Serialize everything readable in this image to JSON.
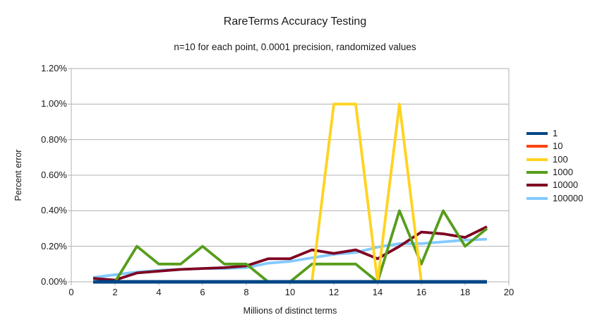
{
  "chart": {
    "text_color": "#1a1a1a",
    "grid_color": "#b0b0b0",
    "background": "#ffffff"
  },
  "chart_data": {
    "type": "line",
    "title": "RareTerms Accuracy Testing",
    "subtitle": "n=10 for each point, 0.0001 precision, randomized values",
    "xlabel": "Millions of distinct terms",
    "ylabel": "Percent error",
    "xlim": [
      0,
      20
    ],
    "ylim_percent": [
      0,
      1.2
    ],
    "x_ticks": [
      0,
      2,
      4,
      6,
      8,
      10,
      12,
      14,
      16,
      18,
      20
    ],
    "y_ticks_percent": [
      0.0,
      0.2,
      0.4,
      0.6,
      0.8,
      1.0,
      1.2
    ],
    "y_tick_format": "percent_2dp",
    "grid": "horizontal",
    "legend_position": "right",
    "x": [
      1,
      2,
      3,
      4,
      5,
      6,
      7,
      8,
      9,
      10,
      11,
      12,
      13,
      14,
      15,
      16,
      17,
      18,
      19
    ],
    "series": [
      {
        "name": "1",
        "color": "#004586",
        "values_percent": [
          0,
          0,
          0,
          0,
          0,
          0,
          0,
          0,
          0,
          0,
          0,
          0,
          0,
          0,
          0,
          0,
          0,
          0,
          0
        ]
      },
      {
        "name": "10",
        "color": "#FF420E",
        "values_percent": [
          0,
          0,
          0,
          0,
          0,
          0,
          0,
          0,
          0,
          0,
          0,
          0,
          0,
          0,
          0,
          0,
          0,
          0,
          0
        ]
      },
      {
        "name": "100",
        "color": "#FFD320",
        "values_percent": [
          0,
          0,
          0,
          0,
          0,
          0,
          0,
          0,
          0,
          0,
          0,
          1.0,
          1.0,
          0,
          1.0,
          0,
          0,
          0,
          0
        ]
      },
      {
        "name": "1000",
        "color": "#579D1C",
        "values_percent": [
          0,
          0,
          0.2,
          0.1,
          0.1,
          0.2,
          0.1,
          0.1,
          0,
          0,
          0.1,
          0.1,
          0.1,
          0,
          0.4,
          0.1,
          0.4,
          0.2,
          0.3
        ]
      },
      {
        "name": "10000",
        "color": "#7E0021",
        "values_percent": [
          0.02,
          0.01,
          0.05,
          0.06,
          0.07,
          0.075,
          0.08,
          0.09,
          0.13,
          0.13,
          0.18,
          0.16,
          0.18,
          0.13,
          0.2,
          0.28,
          0.27,
          0.25,
          0.31
        ]
      },
      {
        "name": "100000",
        "color": "#83CAFF",
        "values_percent": [
          0.025,
          0.04,
          0.055,
          0.065,
          0.07,
          0.075,
          0.075,
          0.08,
          0.105,
          0.115,
          0.135,
          0.155,
          0.165,
          0.195,
          0.215,
          0.215,
          0.225,
          0.235,
          0.24
        ]
      }
    ],
    "draw_order": [
      "100000",
      "10000",
      "1000",
      "100",
      "10",
      "1"
    ]
  }
}
